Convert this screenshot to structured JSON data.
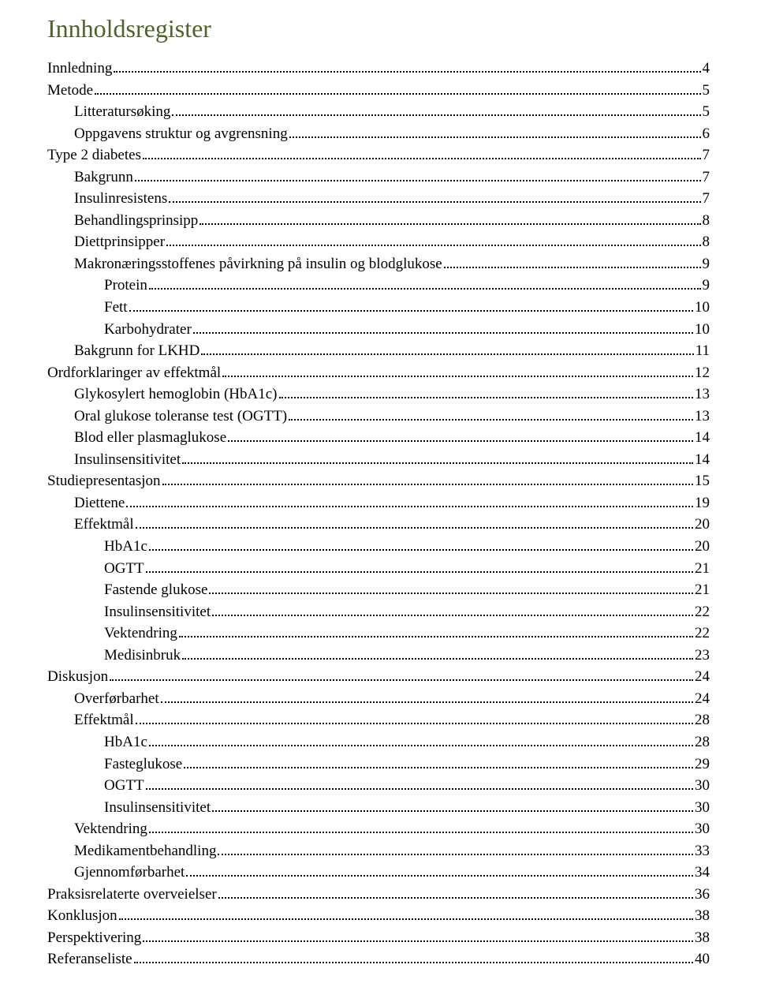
{
  "title": "Innholdsregister",
  "title_color": "#4f6228",
  "text_color": "#000000",
  "background_color": "#ffffff",
  "font_family": "Times New Roman",
  "title_fontsize": 32,
  "body_fontsize": 19,
  "toc": [
    {
      "label": "Innledning",
      "page": "4",
      "level": 0
    },
    {
      "label": "Metode",
      "page": "5",
      "level": 0
    },
    {
      "label": "Litteratursøking",
      "page": "5",
      "level": 1
    },
    {
      "label": "Oppgavens struktur og avgrensning",
      "page": "6",
      "level": 1
    },
    {
      "label": "Type 2 diabetes",
      "page": "7",
      "level": 0
    },
    {
      "label": "Bakgrunn",
      "page": "7",
      "level": 1
    },
    {
      "label": "Insulinresistens",
      "page": "7",
      "level": 1
    },
    {
      "label": "Behandlingsprinsipp",
      "page": "8",
      "level": 1
    },
    {
      "label": "Diettprinsipper",
      "page": "8",
      "level": 1
    },
    {
      "label": "Makronæringsstoffenes påvirkning på insulin og blodglukose",
      "page": "9",
      "level": 1
    },
    {
      "label": "Protein",
      "page": "9",
      "level": 2
    },
    {
      "label": "Fett",
      "page": "10",
      "level": 2
    },
    {
      "label": "Karbohydrater",
      "page": "10",
      "level": 2
    },
    {
      "label": "Bakgrunn for LKHD",
      "page": "11",
      "level": 1
    },
    {
      "label": "Ordforklaringer av effektmål",
      "page": "12",
      "level": 0
    },
    {
      "label": "Glykosylert hemoglobin (HbA1c)",
      "page": "13",
      "level": 1
    },
    {
      "label": "Oral glukose toleranse test (OGTT)",
      "page": "13",
      "level": 1
    },
    {
      "label": "Blod eller plasmaglukose",
      "page": "14",
      "level": 1
    },
    {
      "label": "Insulinsensitivitet",
      "page": "14",
      "level": 1
    },
    {
      "label": "Studiepresentasjon",
      "page": "15",
      "level": 0
    },
    {
      "label": "Diettene",
      "page": "19",
      "level": 1
    },
    {
      "label": "Effektmål",
      "page": "20",
      "level": 1
    },
    {
      "label": "HbA1c",
      "page": "20",
      "level": 2
    },
    {
      "label": "OGTT",
      "page": "21",
      "level": 2
    },
    {
      "label": "Fastende glukose",
      "page": "21",
      "level": 2
    },
    {
      "label": "Insulinsensitivitet",
      "page": "22",
      "level": 2
    },
    {
      "label": "Vektendring",
      "page": "22",
      "level": 2
    },
    {
      "label": "Medisinbruk",
      "page": "23",
      "level": 2
    },
    {
      "label": "Diskusjon",
      "page": "24",
      "level": 0
    },
    {
      "label": "Overførbarhet",
      "page": "24",
      "level": 1
    },
    {
      "label": "Effektmål",
      "page": "28",
      "level": 1
    },
    {
      "label": "HbA1c",
      "page": "28",
      "level": 2
    },
    {
      "label": "Fasteglukose",
      "page": "29",
      "level": 2
    },
    {
      "label": "OGTT",
      "page": "30",
      "level": 2
    },
    {
      "label": "Insulinsensitivitet",
      "page": "30",
      "level": 2
    },
    {
      "label": "Vektendring",
      "page": "30",
      "level": 1
    },
    {
      "label": "Medikamentbehandling",
      "page": "33",
      "level": 1
    },
    {
      "label": "Gjennomførbarhet",
      "page": "34",
      "level": 1
    },
    {
      "label": "Praksisrelaterte overveielser",
      "page": "36",
      "level": 0
    },
    {
      "label": "Konklusjon",
      "page": "38",
      "level": 0
    },
    {
      "label": "Perspektivering",
      "page": "38",
      "level": 0
    },
    {
      "label": "Referanseliste",
      "page": "40",
      "level": 0
    }
  ]
}
